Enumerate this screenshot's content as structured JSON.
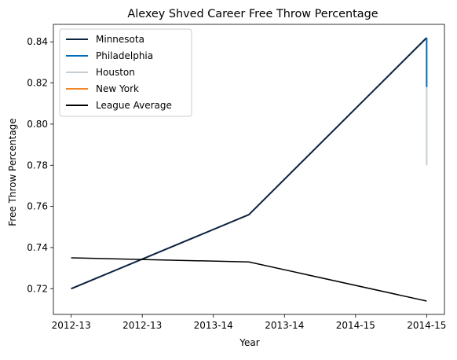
{
  "chart_data": {
    "type": "line",
    "title": "Alexey Shved Career Free Throw Percentage",
    "xlabel": "Year",
    "ylabel": "Free Throw Percentage",
    "x_tick_labels": [
      "2012-13",
      "2012-13",
      "2013-14",
      "2013-14",
      "2014-15",
      "2014-15"
    ],
    "xlim": [
      -0.1,
      2.1
    ],
    "ylim": [
      0.7075,
      0.8485
    ],
    "y_ticks": [
      0.72,
      0.74,
      0.76,
      0.78,
      0.8,
      0.82,
      0.84
    ],
    "y_tick_labels": [
      "0.72",
      "0.74",
      "0.76",
      "0.78",
      "0.80",
      "0.82",
      "0.84"
    ],
    "grid": false,
    "legend_position": "upper-left",
    "series": [
      {
        "name": "Minnesota",
        "color": "#0C2340",
        "x": [
          0,
          1,
          2
        ],
        "y": [
          0.72,
          0.756,
          0.842
        ]
      },
      {
        "name": "Philadelphia",
        "color": "#006BB6",
        "x": [
          2,
          2
        ],
        "y": [
          0.842,
          0.818
        ]
      },
      {
        "name": "Houston",
        "color": "#C4CED4",
        "x": [
          2,
          2
        ],
        "y": [
          0.818,
          0.78
        ]
      },
      {
        "name": "New York",
        "color": "#F58426",
        "x": [
          2
        ],
        "y": [
          0.78
        ]
      },
      {
        "name": "League Average",
        "color": "#000000",
        "x": [
          0,
          1,
          2
        ],
        "y": [
          0.735,
          0.733,
          0.714
        ]
      }
    ]
  }
}
